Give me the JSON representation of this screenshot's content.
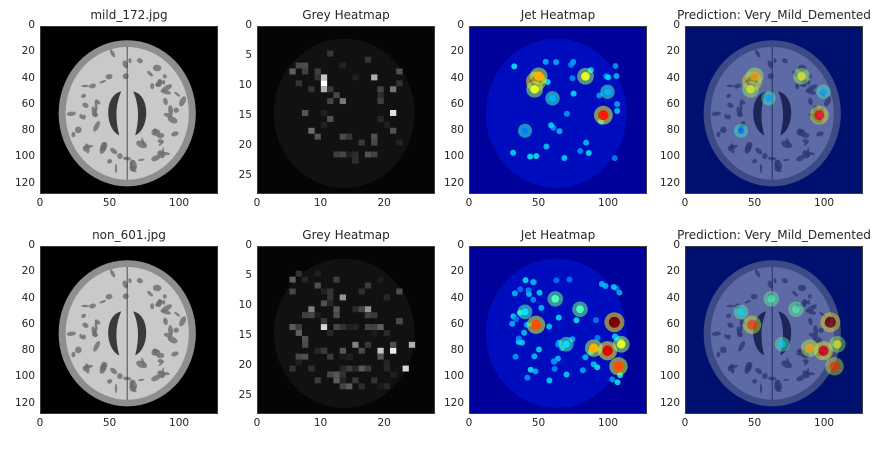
{
  "figure": {
    "rows": [
      {
        "panels": [
          {
            "kind": "mri",
            "title": "mild_172.jpg",
            "xticks": [
              "0",
              "50",
              "100"
            ],
            "xtick_vals": [
              0,
              50,
              100
            ],
            "yticks": [
              "0",
              "20",
              "40",
              "60",
              "80",
              "100",
              "120"
            ],
            "ytick_vals": [
              0,
              20,
              40,
              60,
              80,
              100,
              120
            ],
            "extent": 128
          },
          {
            "kind": "grey",
            "title": "Grey Heatmap",
            "xticks": [
              "0",
              "10",
              "20"
            ],
            "xtick_vals": [
              0,
              10,
              20
            ],
            "yticks": [
              "0",
              "5",
              "10",
              "15",
              "20",
              "25"
            ],
            "ytick_vals": [
              0,
              5,
              10,
              15,
              20,
              25
            ],
            "extent": 28
          },
          {
            "kind": "jet",
            "title": "Jet Heatmap",
            "xticks": [
              "0",
              "50",
              "100"
            ],
            "xtick_vals": [
              0,
              50,
              100
            ],
            "yticks": [
              "0",
              "20",
              "40",
              "60",
              "80",
              "100",
              "120"
            ],
            "ytick_vals": [
              0,
              20,
              40,
              60,
              80,
              100,
              120
            ],
            "extent": 128
          },
          {
            "kind": "overlay",
            "title": "Prediction: Very_Mild_Demented",
            "xticks": [
              "0",
              "50",
              "100"
            ],
            "xtick_vals": [
              0,
              50,
              100
            ],
            "yticks": [
              "0",
              "20",
              "40",
              "60",
              "80",
              "100",
              "120"
            ],
            "ytick_vals": [
              0,
              20,
              40,
              60,
              80,
              100,
              120
            ],
            "extent": 128
          }
        ],
        "hotspots": [
          [
            48,
            42,
            1.0
          ],
          [
            50,
            38,
            0.7
          ],
          [
            47,
            48,
            0.6
          ],
          [
            84,
            38,
            0.6
          ],
          [
            97,
            68,
            0.85
          ],
          [
            60,
            55,
            0.3
          ],
          [
            40,
            80,
            0.25
          ],
          [
            100,
            50,
            0.3
          ]
        ]
      },
      {
        "panels": [
          {
            "kind": "mri",
            "title": "non_601.jpg",
            "xticks": [
              "0",
              "50",
              "100"
            ],
            "xtick_vals": [
              0,
              50,
              100
            ],
            "yticks": [
              "0",
              "20",
              "40",
              "60",
              "80",
              "100",
              "120"
            ],
            "ytick_vals": [
              0,
              20,
              40,
              60,
              80,
              100,
              120
            ],
            "extent": 128
          },
          {
            "kind": "grey",
            "title": "Grey Heatmap",
            "xticks": [
              "0",
              "10",
              "20"
            ],
            "xtick_vals": [
              0,
              10,
              20
            ],
            "yticks": [
              "0",
              "5",
              "10",
              "15",
              "20",
              "25"
            ],
            "ytick_vals": [
              0,
              5,
              10,
              15,
              20,
              25
            ],
            "extent": 28
          },
          {
            "kind": "jet",
            "title": "Jet Heatmap",
            "xticks": [
              "0",
              "50",
              "100"
            ],
            "xtick_vals": [
              0,
              50,
              100
            ],
            "yticks": [
              "0",
              "20",
              "40",
              "60",
              "80",
              "100",
              "120"
            ],
            "ytick_vals": [
              0,
              20,
              40,
              60,
              80,
              100,
              120
            ],
            "extent": 128
          },
          {
            "kind": "overlay",
            "title": "Prediction: Very_Mild_Demented",
            "xticks": [
              "0",
              "50",
              "100"
            ],
            "xtick_vals": [
              0,
              50,
              100
            ],
            "yticks": [
              "0",
              "20",
              "40",
              "60",
              "80",
              "100",
              "120"
            ],
            "ytick_vals": [
              0,
              20,
              40,
              60,
              80,
              100,
              120
            ],
            "extent": 128
          }
        ],
        "hotspots": [
          [
            105,
            58,
            1.0
          ],
          [
            100,
            80,
            0.9
          ],
          [
            108,
            92,
            0.8
          ],
          [
            48,
            60,
            0.8
          ],
          [
            90,
            78,
            0.7
          ],
          [
            62,
            40,
            0.45
          ],
          [
            80,
            48,
            0.45
          ],
          [
            40,
            50,
            0.35
          ],
          [
            110,
            75,
            0.6
          ],
          [
            70,
            75,
            0.35
          ]
        ]
      }
    ]
  },
  "chart_data": {
    "type": "heatmap",
    "title": "",
    "rows": [
      {
        "image": "mild_172.jpg",
        "prediction": "Prediction: Very_Mild_Demented"
      },
      {
        "image": "non_601.jpg",
        "prediction": "Prediction: Very_Mild_Demented"
      }
    ],
    "panel_titles": [
      "Grey Heatmap",
      "Jet Heatmap"
    ],
    "image_axes": {
      "xlim": [
        0,
        128
      ],
      "ylim": [
        128,
        0
      ]
    },
    "heatmap_axes": {
      "xlim": [
        0,
        28
      ],
      "ylim": [
        28,
        0
      ]
    },
    "colors": {
      "jet_low": "#0000aa",
      "jet_high": "#ff0000"
    }
  }
}
